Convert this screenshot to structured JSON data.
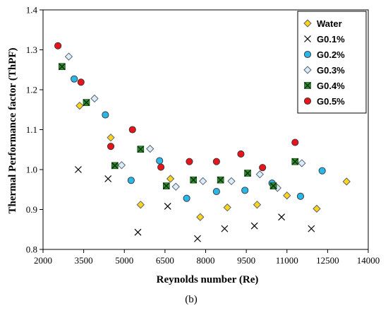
{
  "caption": "(b)",
  "chart_data": {
    "type": "scatter",
    "xlabel": "Reynolds number (Re)",
    "ylabel": "Thermal Performance factor (ThPF)",
    "xlim": [
      2000,
      14000
    ],
    "ylim": [
      0.8,
      1.4
    ],
    "xticks": [
      2000,
      3500,
      5000,
      6500,
      8000,
      9500,
      11000,
      12500,
      14000
    ],
    "yticks": [
      0.8,
      0.9,
      1.0,
      1.1,
      1.2,
      1.3,
      1.4
    ],
    "grid": false,
    "legend_position": "top-right",
    "series": [
      {
        "name": "Water",
        "marker": "diamond",
        "color": "#ffd21e",
        "points": [
          [
            3350,
            1.16
          ],
          [
            4500,
            1.08
          ],
          [
            5600,
            0.912
          ],
          [
            6700,
            0.977
          ],
          [
            7800,
            0.881
          ],
          [
            8800,
            0.905
          ],
          [
            9900,
            0.912
          ],
          [
            11000,
            0.935
          ],
          [
            12100,
            0.902
          ],
          [
            13200,
            0.97
          ]
        ]
      },
      {
        "name": "G0.1%",
        "marker": "x",
        "color": "#000000",
        "points": [
          [
            3300,
            1.0
          ],
          [
            4400,
            0.977
          ],
          [
            5500,
            0.843
          ],
          [
            6600,
            0.908
          ],
          [
            7700,
            0.827
          ],
          [
            8700,
            0.852
          ],
          [
            9800,
            0.859
          ],
          [
            10800,
            0.881
          ],
          [
            11900,
            0.852
          ]
        ]
      },
      {
        "name": "G0.2%",
        "marker": "circle",
        "color": "#29b6e8",
        "points": [
          [
            3150,
            1.227
          ],
          [
            4300,
            1.137
          ],
          [
            5250,
            0.973
          ],
          [
            6300,
            1.022
          ],
          [
            7300,
            0.928
          ],
          [
            8400,
            0.945
          ],
          [
            9450,
            0.948
          ],
          [
            10450,
            0.966
          ],
          [
            11500,
            0.933
          ],
          [
            12300,
            0.997
          ]
        ]
      },
      {
        "name": "G0.3%",
        "marker": "diamond",
        "color": "#dcebf7",
        "points": [
          [
            2950,
            1.283
          ],
          [
            3900,
            1.178
          ],
          [
            4900,
            1.011
          ],
          [
            5950,
            1.052
          ],
          [
            6900,
            0.957
          ],
          [
            7900,
            0.971
          ],
          [
            8950,
            0.971
          ],
          [
            10000,
            0.988
          ],
          [
            10650,
            0.954
          ],
          [
            11550,
            1.016
          ]
        ]
      },
      {
        "name": "G0.4%",
        "marker": "square-x",
        "color": "#2e8b2e",
        "points": [
          [
            2700,
            1.258
          ],
          [
            3600,
            1.168
          ],
          [
            4650,
            1.01
          ],
          [
            5600,
            1.051
          ],
          [
            6550,
            0.959
          ],
          [
            7550,
            0.974
          ],
          [
            8550,
            0.974
          ],
          [
            9550,
            0.991
          ],
          [
            10500,
            0.959
          ],
          [
            11300,
            1.02
          ]
        ]
      },
      {
        "name": "G0.5%",
        "marker": "circle",
        "color": "#e8141c",
        "points": [
          [
            2550,
            1.31
          ],
          [
            3400,
            1.219
          ],
          [
            4500,
            1.058
          ],
          [
            5300,
            1.1
          ],
          [
            6350,
            1.006
          ],
          [
            7400,
            1.02
          ],
          [
            8400,
            1.02
          ],
          [
            9300,
            1.039
          ],
          [
            10100,
            1.005
          ],
          [
            11300,
            1.068
          ]
        ]
      }
    ]
  }
}
